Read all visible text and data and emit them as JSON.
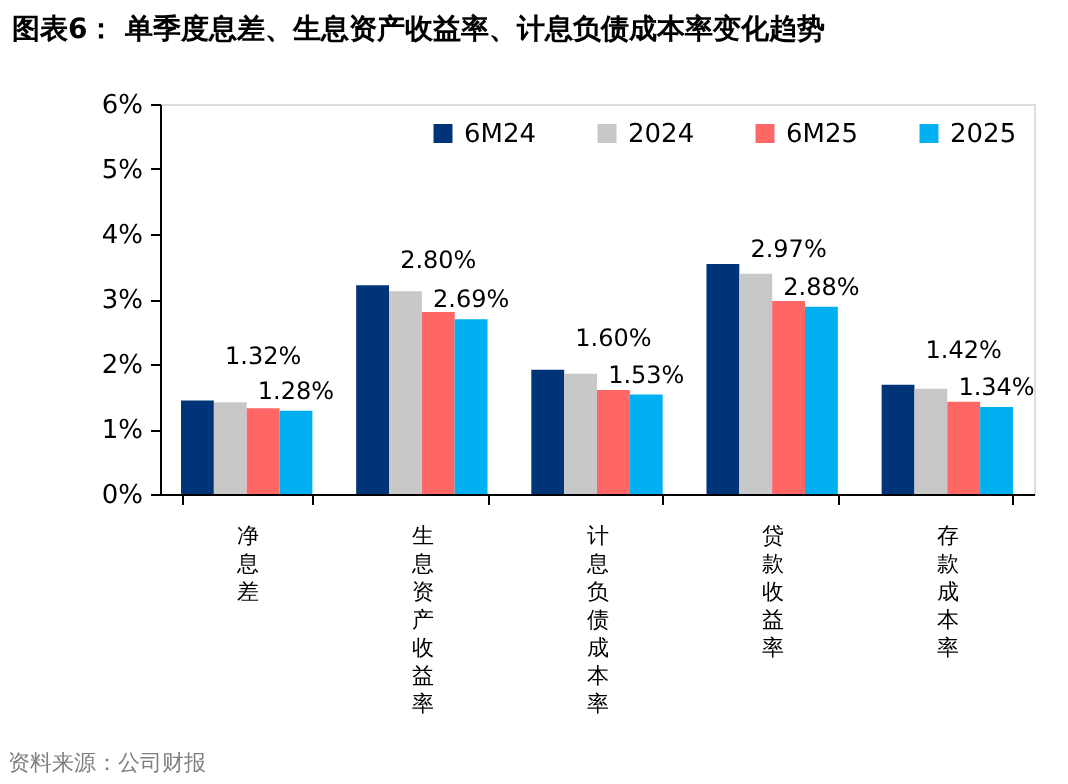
{
  "chart_data": {
    "type": "bar",
    "title": "图表6：  单季度息差、生息资产收益率、计息负债成本率变化趋势",
    "categories": [
      "净息差",
      "生息资产收益率",
      "计息负债成本率",
      "贷款收益率",
      "存款成本率"
    ],
    "series": [
      {
        "name": "6M24",
        "color": "#003478",
        "values": [
          1.44,
          3.21,
          1.91,
          3.54,
          1.68
        ]
      },
      {
        "name": "2024",
        "color": "#c8c8c8",
        "values": [
          1.41,
          3.12,
          1.85,
          3.39,
          1.62
        ]
      },
      {
        "name": "6M25",
        "color": "#ff6666",
        "values": [
          1.32,
          2.8,
          1.6,
          2.97,
          1.42
        ],
        "value_labels": [
          "1.32%",
          "2.80%",
          "1.60%",
          "2.97%",
          "1.42%"
        ]
      },
      {
        "name": "2025",
        "color": "#00b0f0",
        "values": [
          1.28,
          2.69,
          1.53,
          2.88,
          1.34
        ],
        "value_labels": [
          "1.28%",
          "2.69%",
          "1.53%",
          "2.88%",
          "1.34%"
        ]
      }
    ],
    "ylim": [
      0,
      6
    ],
    "yticks": [
      {
        "value": 0,
        "label": "0%"
      },
      {
        "value": 1,
        "label": "1%"
      },
      {
        "value": 2,
        "label": "2%"
      },
      {
        "value": 3,
        "label": "3%"
      },
      {
        "value": 4,
        "label": "4%"
      },
      {
        "value": 5,
        "label": "5%"
      },
      {
        "value": 6,
        "label": "6%"
      }
    ],
    "grid": false,
    "legend": "top right",
    "annotations": [
      "资料来源：公司财报"
    ]
  }
}
